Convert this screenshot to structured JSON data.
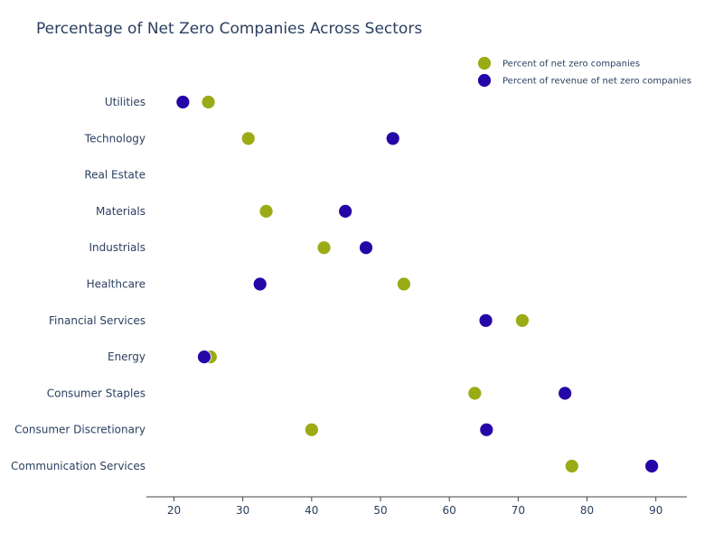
{
  "colors": {
    "series_1": "#9aab16",
    "series_2": "#2507a8",
    "text": "#2a3f5f",
    "axis": "#444444"
  },
  "chart_data": {
    "type": "scatter",
    "title": "Percentage of Net Zero Companies Across Sectors",
    "xlabel": "",
    "ylabel": "",
    "xlim": [
      16,
      94.5
    ],
    "xticks": [
      20,
      30,
      40,
      50,
      60,
      70,
      80,
      90
    ],
    "categories": [
      "Utilities",
      "Technology",
      "Real Estate",
      "Materials",
      "Industrials",
      "Healthcare",
      "Financial Services",
      "Energy",
      "Consumer Staples",
      "Consumer Discretionary",
      "Communication Services"
    ],
    "series": [
      {
        "name": "Percent of net zero companies",
        "values": [
          25,
          30.8,
          null,
          33.4,
          41.8,
          53.4,
          70.6,
          25.3,
          63.7,
          40,
          77.8
        ]
      },
      {
        "name": "Percent of revenue of net zero companies",
        "values": [
          21.3,
          51.8,
          null,
          44.9,
          47.9,
          32.5,
          65.3,
          24.4,
          76.8,
          65.4,
          89.4
        ]
      }
    ],
    "legend_position": "top-right",
    "grid": false
  }
}
